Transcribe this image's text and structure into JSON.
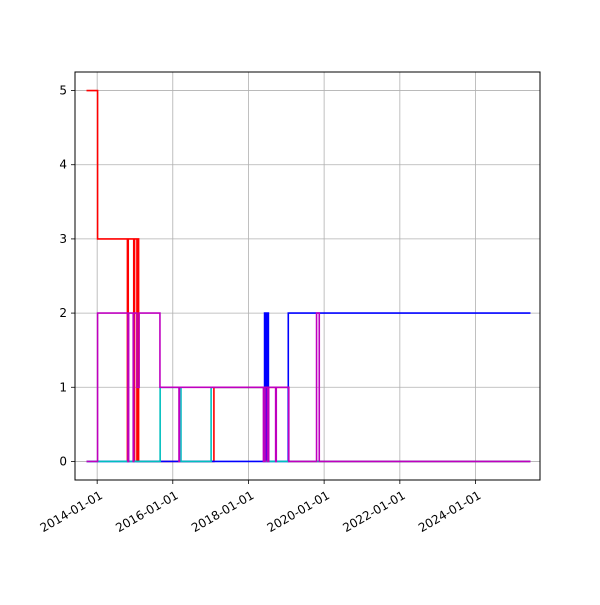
{
  "chart_data": {
    "type": "line",
    "step": "post",
    "grid": true,
    "legend": "none",
    "title": "",
    "xlabel": "",
    "ylabel": "",
    "x_axis": {
      "type": "date",
      "range": [
        "2013-06-01",
        "2025-09-15"
      ],
      "ticks": [
        "2014-01-01",
        "2016-01-01",
        "2018-01-01",
        "2020-01-01",
        "2022-01-01",
        "2024-01-01"
      ],
      "tick_labels": [
        "2014-01-01",
        "2016-01-01",
        "2018-01-01",
        "2020-01-01",
        "2022-01-01",
        "2024-01-01"
      ]
    },
    "y_axis": {
      "range": [
        -0.25,
        5.25
      ],
      "ticks": [
        0,
        1,
        2,
        3,
        4,
        5
      ],
      "tick_labels": [
        "0",
        "1",
        "2",
        "3",
        "4",
        "5"
      ]
    },
    "series": [
      {
        "color": "#ff0000",
        "points": [
          [
            "2013-09-20",
            5
          ],
          [
            "2014-01-05",
            3
          ],
          [
            "2014-10-20",
            0
          ],
          [
            "2014-10-28",
            3
          ],
          [
            "2014-12-20",
            0
          ],
          [
            "2014-12-28",
            3
          ],
          [
            "2015-01-20",
            0
          ],
          [
            "2015-01-28",
            3
          ],
          [
            "2015-02-05",
            0
          ],
          [
            "2015-10-01",
            0
          ],
          [
            "2017-01-01",
            0
          ],
          [
            "2017-02-01",
            1
          ],
          [
            "2018-06-01",
            1
          ],
          [
            "2019-01-01",
            1
          ],
          [
            "2019-01-20",
            0
          ],
          [
            "2025-06-15",
            0
          ]
        ]
      },
      {
        "color": "#0000ff",
        "points": [
          [
            "2013-09-20",
            0
          ],
          [
            "2018-06-01",
            0
          ],
          [
            "2018-06-05",
            2
          ],
          [
            "2018-06-08",
            0
          ],
          [
            "2018-06-11",
            2
          ],
          [
            "2018-06-14",
            0
          ],
          [
            "2018-06-17",
            2
          ],
          [
            "2018-06-20",
            0
          ],
          [
            "2018-06-23",
            2
          ],
          [
            "2018-06-26",
            0
          ],
          [
            "2018-07-01",
            2
          ],
          [
            "2018-07-04",
            0
          ],
          [
            "2018-07-08",
            2
          ],
          [
            "2018-07-12",
            0
          ],
          [
            "2018-09-20",
            0
          ],
          [
            "2018-10-01",
            0
          ],
          [
            "2019-01-20",
            2
          ],
          [
            "2025-06-15",
            2
          ]
        ]
      },
      {
        "color": "#00bfbf",
        "points": [
          [
            "2013-09-20",
            0
          ],
          [
            "2015-08-25",
            0
          ],
          [
            "2015-09-01",
            1
          ],
          [
            "2016-03-10",
            1
          ],
          [
            "2016-03-20",
            0
          ],
          [
            "2016-12-20",
            0
          ],
          [
            "2017-01-05",
            1
          ],
          [
            "2018-05-25",
            1
          ],
          [
            "2018-06-01",
            0
          ],
          [
            "2025-06-15",
            0
          ]
        ]
      },
      {
        "color": "#bf00bf",
        "points": [
          [
            "2013-09-20",
            0
          ],
          [
            "2014-01-05",
            2
          ],
          [
            "2014-10-25",
            0
          ],
          [
            "2014-11-01",
            2
          ],
          [
            "2014-12-15",
            0
          ],
          [
            "2014-12-20",
            2
          ],
          [
            "2015-01-20",
            1
          ],
          [
            "2015-02-10",
            2
          ],
          [
            "2015-08-30",
            1
          ],
          [
            "2016-03-01",
            0
          ],
          [
            "2016-03-05",
            1
          ],
          [
            "2018-05-25",
            0
          ],
          [
            "2018-06-10",
            1
          ],
          [
            "2018-07-01",
            0
          ],
          [
            "2018-07-15",
            1
          ],
          [
            "2018-09-20",
            0
          ],
          [
            "2018-09-26",
            1
          ],
          [
            "2019-01-20",
            1
          ],
          [
            "2019-01-25",
            0
          ],
          [
            "2019-10-15",
            0
          ],
          [
            "2019-10-20",
            2
          ],
          [
            "2019-11-15",
            0
          ],
          [
            "2025-06-15",
            0
          ]
        ]
      }
    ]
  }
}
